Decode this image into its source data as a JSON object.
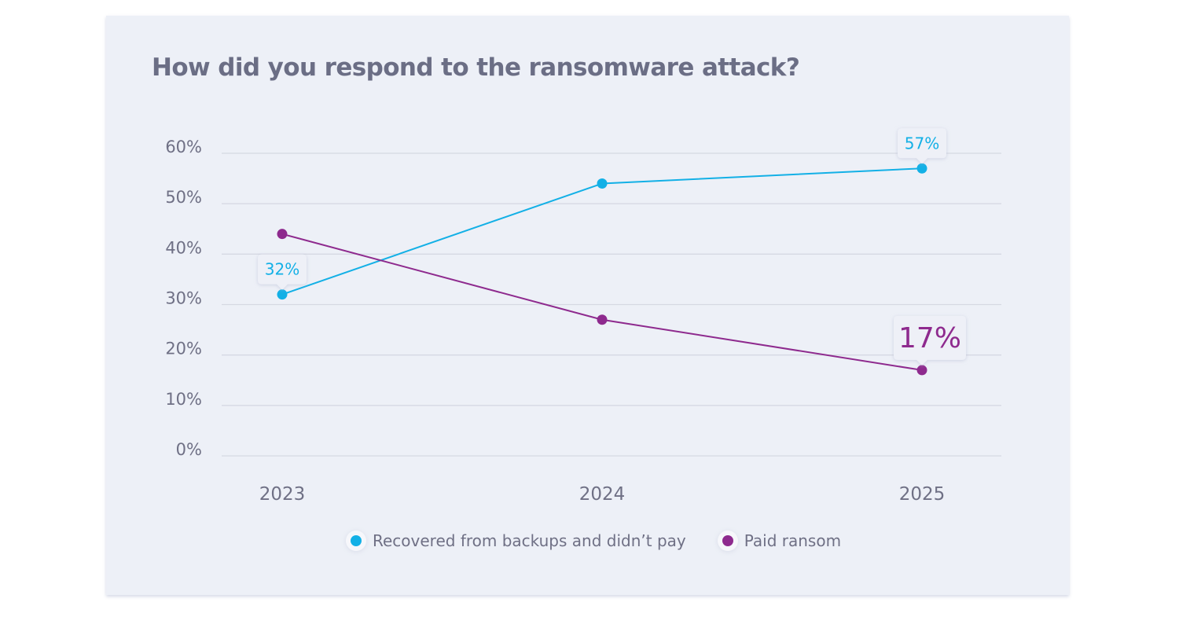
{
  "chart_data": {
    "type": "line",
    "title": "How did you respond to the ransomware attack?",
    "xlabel": "",
    "ylabel": "",
    "categories": [
      "2023",
      "2024",
      "2025"
    ],
    "ylim": [
      0,
      60
    ],
    "yticks": [
      0,
      10,
      20,
      30,
      40,
      50,
      60
    ],
    "ytick_labels": [
      "0%",
      "10%",
      "20%",
      "30%",
      "40%",
      "50%",
      "60%"
    ],
    "grid": true,
    "legend_position": "bottom-center",
    "series": [
      {
        "name": "Recovered from backups and didn’t pay",
        "color": "#13b0e6",
        "values": [
          32,
          54,
          57
        ],
        "annotations": [
          {
            "index": 0,
            "label": "32%"
          },
          {
            "index": 2,
            "label": "57%"
          }
        ]
      },
      {
        "name": "Paid ransom",
        "color": "#8e2a8e",
        "values": [
          44,
          27,
          17
        ],
        "annotations": [
          {
            "index": 2,
            "label": "17%"
          }
        ]
      }
    ]
  },
  "colors": {
    "background": "#ffffff",
    "card": "#edf0f7",
    "gridline": "#d6d9e3",
    "text": "#6f7085",
    "title": "#6b6e85"
  }
}
